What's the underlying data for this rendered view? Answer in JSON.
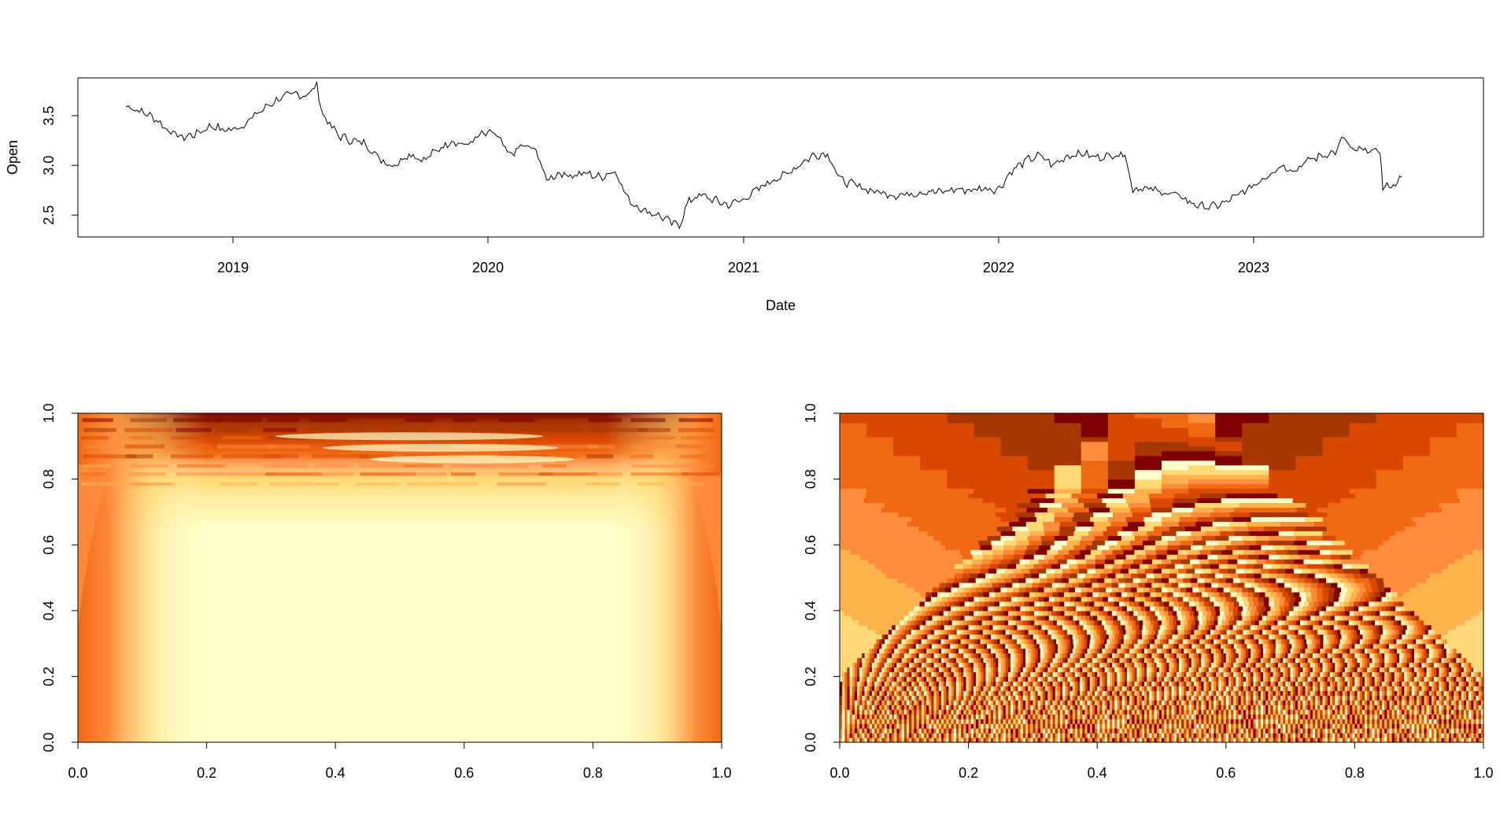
{
  "chart_data": [
    {
      "type": "line",
      "title": "",
      "xlabel": "Date",
      "ylabel": "Open",
      "x_ticks": [
        "2019",
        "2020",
        "2021",
        "2022",
        "2023"
      ],
      "y_ticks": [
        "2.5",
        "3.0",
        "3.5"
      ],
      "ylim": [
        2.28,
        3.88
      ],
      "xlim": [
        "2018-05-24",
        "2023-11-26"
      ],
      "grid": false,
      "line_color": "#000000",
      "series": [
        {
          "x": [
            "2018-08-01",
            "2018-08-20",
            "2018-09-10",
            "2018-10-01",
            "2018-10-20",
            "2018-11-10",
            "2018-12-01",
            "2018-12-20",
            "2019-01-10",
            "2019-02-01",
            "2019-02-20",
            "2019-03-10",
            "2019-04-01",
            "2019-04-15",
            "2019-05-01",
            "2019-05-10",
            "2019-06-01",
            "2019-06-20",
            "2019-07-10",
            "2019-08-01",
            "2019-08-20",
            "2019-09-10",
            "2019-10-01",
            "2019-10-20",
            "2019-11-10",
            "2019-12-01",
            "2019-12-20",
            "2020-01-10",
            "2020-02-01",
            "2020-02-20",
            "2020-03-10",
            "2020-03-25",
            "2020-04-10",
            "2020-05-01",
            "2020-05-20",
            "2020-06-10",
            "2020-07-01",
            "2020-07-20",
            "2020-08-10",
            "2020-09-01",
            "2020-09-20",
            "2020-10-01",
            "2020-10-15",
            "2020-11-01",
            "2020-11-20",
            "2020-12-10",
            "2021-01-01",
            "2021-01-20",
            "2021-02-10",
            "2021-03-01",
            "2021-03-20",
            "2021-04-10",
            "2021-05-01",
            "2021-05-20",
            "2021-06-10",
            "2021-07-01",
            "2021-07-20",
            "2021-08-10",
            "2021-09-01",
            "2021-09-20",
            "2021-10-10",
            "2021-11-01",
            "2021-11-20",
            "2021-12-10",
            "2022-01-01",
            "2022-01-20",
            "2022-02-10",
            "2022-03-01",
            "2022-03-20",
            "2022-04-10",
            "2022-05-01",
            "2022-05-20",
            "2022-06-10",
            "2022-07-01",
            "2022-07-12",
            "2022-07-20",
            "2022-08-10",
            "2022-09-01",
            "2022-09-20",
            "2022-10-10",
            "2022-11-01",
            "2022-11-20",
            "2022-12-10",
            "2023-01-01",
            "2023-01-20",
            "2023-02-10",
            "2023-03-01",
            "2023-03-20",
            "2023-04-10",
            "2023-05-01",
            "2023-05-10",
            "2023-05-20",
            "2023-06-10",
            "2023-07-01",
            "2023-07-05",
            "2023-07-20",
            "2023-08-01"
          ],
          "y": [
            3.6,
            3.55,
            3.48,
            3.35,
            3.28,
            3.32,
            3.4,
            3.35,
            3.38,
            3.5,
            3.6,
            3.68,
            3.72,
            3.7,
            3.8,
            3.5,
            3.3,
            3.25,
            3.22,
            3.05,
            3.0,
            3.12,
            3.05,
            3.15,
            3.25,
            3.2,
            3.3,
            3.33,
            3.1,
            3.2,
            3.15,
            2.85,
            2.92,
            2.9,
            2.92,
            2.88,
            2.95,
            2.65,
            2.55,
            2.5,
            2.42,
            2.4,
            2.65,
            2.7,
            2.65,
            2.6,
            2.66,
            2.75,
            2.85,
            2.9,
            3.0,
            3.1,
            3.12,
            2.85,
            2.8,
            2.75,
            2.72,
            2.7,
            2.72,
            2.74,
            2.73,
            2.76,
            2.75,
            2.77,
            2.76,
            2.95,
            3.05,
            3.1,
            3.0,
            3.1,
            3.12,
            3.08,
            3.1,
            3.12,
            2.75,
            2.78,
            2.75,
            2.72,
            2.68,
            2.6,
            2.58,
            2.62,
            2.7,
            2.8,
            2.9,
            3.0,
            2.95,
            3.05,
            3.1,
            3.15,
            3.3,
            3.15,
            3.15,
            3.14,
            2.78,
            2.8,
            2.88
          ]
        }
      ]
    },
    {
      "type": "heatmap",
      "title": "",
      "xlabel": "",
      "ylabel": "",
      "x_ticks": [
        "0.0",
        "0.2",
        "0.4",
        "0.6",
        "0.8",
        "1.0"
      ],
      "y_ticks": [
        "0.0",
        "0.2",
        "0.4",
        "0.6",
        "0.8",
        "1.0"
      ],
      "xlim": [
        0,
        1
      ],
      "ylim": [
        0,
        1
      ],
      "colormap": [
        "#ffffcc",
        "#ffeda0",
        "#fed976",
        "#feb24c",
        "#fd8d3c",
        "#f16913",
        "#d94801",
        "#a63603",
        "#7f0000"
      ]
    },
    {
      "type": "heatmap",
      "title": "",
      "xlabel": "",
      "ylabel": "",
      "x_ticks": [
        "0.0",
        "0.2",
        "0.4",
        "0.6",
        "0.8",
        "1.0"
      ],
      "y_ticks": [
        "0.0",
        "0.2",
        "0.4",
        "0.6",
        "0.8",
        "1.0"
      ],
      "xlim": [
        0,
        1
      ],
      "ylim": [
        0,
        1
      ],
      "colormap": [
        "#ffffcc",
        "#fed976",
        "#feb24c",
        "#fd8d3c",
        "#f16913",
        "#d94801",
        "#a63603",
        "#7f0000"
      ]
    }
  ]
}
